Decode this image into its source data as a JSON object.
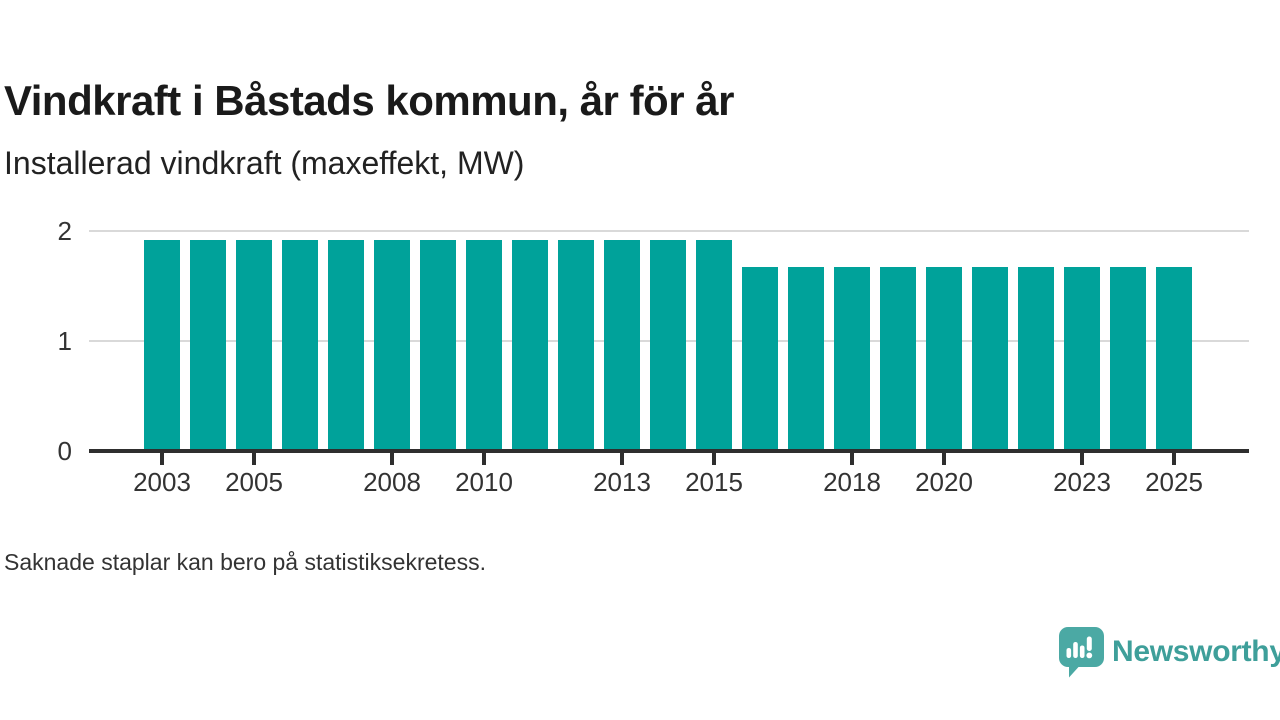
{
  "chart_data": {
    "type": "bar",
    "title": "Vindkraft i Båstads kommun, år för år",
    "subtitle": "Installerad vindkraft (maxeffekt, MW)",
    "categories": [
      2003,
      2004,
      2005,
      2006,
      2007,
      2008,
      2009,
      2010,
      2011,
      2012,
      2013,
      2014,
      2015,
      2016,
      2017,
      2018,
      2019,
      2020,
      2021,
      2022,
      2023,
      2024,
      2025
    ],
    "values": [
      1.9,
      1.9,
      1.9,
      1.9,
      1.9,
      1.9,
      1.9,
      1.9,
      1.9,
      1.9,
      1.9,
      1.9,
      1.9,
      1.65,
      1.65,
      1.65,
      1.65,
      1.65,
      1.65,
      1.65,
      1.65,
      1.65,
      1.65
    ],
    "xlabel": "",
    "ylabel": "MW",
    "ylim": [
      0,
      2
    ],
    "yticks": [
      0,
      1,
      2
    ],
    "xtick_years": [
      2003,
      2005,
      2008,
      2010,
      2013,
      2015,
      2018,
      2020,
      2023,
      2025
    ],
    "grid": true,
    "legend": false,
    "bar_color": "#00a29a",
    "axis_color": "#2e2e2e",
    "grid_color": "#d9d9d9",
    "tick_text_color": "#333333"
  },
  "footnote": "Saknade staplar kan bero på statistiksekretess.",
  "logo": {
    "text": "Newsworthy",
    "bubble_color": "#4ba9a4",
    "text_color": "#3e9f9a",
    "glyph_color": "#ffffff"
  }
}
